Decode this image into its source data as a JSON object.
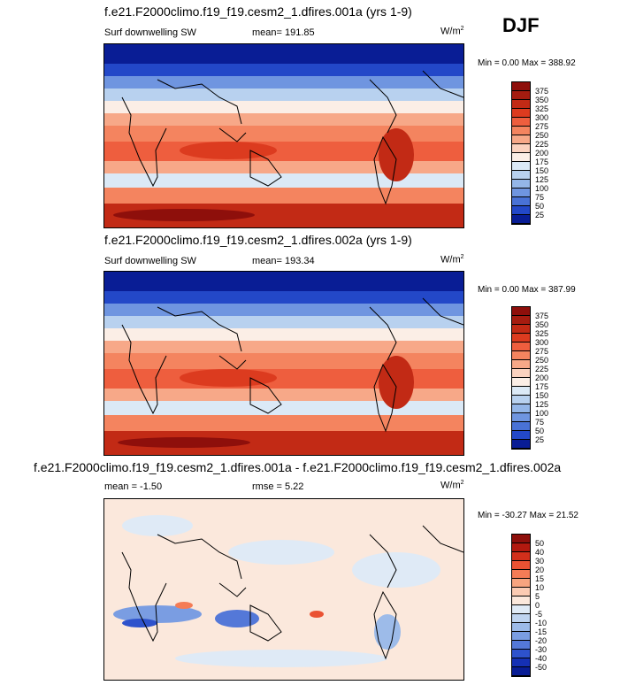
{
  "season": "DJF",
  "chart_data": [
    {
      "type": "heatmap",
      "title": "f.e21.F2000climo.f19_f19.cesm2_1.dfires.001a (yrs 1-9)",
      "variable": "Surf downwelling SW",
      "mean_label": "mean= 191.85",
      "units": "W/m",
      "units_exp": "2",
      "minmax": "Min =   0.00 Max = 388.92",
      "min": 0.0,
      "max": 388.92,
      "mean": 191.85,
      "levels": [
        "375",
        "350",
        "325",
        "300",
        "275",
        "250",
        "225",
        "200",
        "175",
        "150",
        "125",
        "100",
        "75",
        "50",
        "25"
      ],
      "colors": [
        "#8e0f0b",
        "#a51c10",
        "#c22a15",
        "#dc3b1f",
        "#ee5e3e",
        "#f4845f",
        "#f7a888",
        "#fbd2bf",
        "#fbeee6",
        "#dbe9f6",
        "#b8d1ef",
        "#94b6e8",
        "#6f95e0",
        "#4972d6",
        "#2348c8",
        "#091d95"
      ]
    },
    {
      "type": "heatmap",
      "title": "f.e21.F2000climo.f19_f19.cesm2_1.dfires.002a (yrs 1-9)",
      "variable": "Surf downwelling SW",
      "mean_label": "mean= 193.34",
      "units": "W/m",
      "units_exp": "2",
      "minmax": "Min =   0.00 Max = 387.99",
      "min": 0.0,
      "max": 387.99,
      "mean": 193.34,
      "levels": [
        "375",
        "350",
        "325",
        "300",
        "275",
        "250",
        "225",
        "200",
        "175",
        "150",
        "125",
        "100",
        "75",
        "50",
        "25"
      ],
      "colors": [
        "#8e0f0b",
        "#a51c10",
        "#c22a15",
        "#dc3b1f",
        "#ee5e3e",
        "#f4845f",
        "#f7a888",
        "#fbd2bf",
        "#fbeee6",
        "#dbe9f6",
        "#b8d1ef",
        "#94b6e8",
        "#6f95e0",
        "#4972d6",
        "#2348c8",
        "#091d95"
      ]
    },
    {
      "type": "heatmap",
      "title": "f.e21.F2000climo.f19_f19.cesm2_1.dfires.001a - f.e21.F2000climo.f19_f19.cesm2_1.dfires.002a",
      "variable": "",
      "mean_label": "mean =  -1.50",
      "rmse_label": "rmse =   5.22",
      "units": "W/m",
      "units_exp": "2",
      "minmax": "Min = -30.27 Max =  21.52",
      "min": -30.27,
      "max": 21.52,
      "mean": -1.5,
      "rmse": 5.22,
      "levels": [
        "50",
        "40",
        "30",
        "20",
        "15",
        "10",
        "5",
        "0",
        "-5",
        "-10",
        "-15",
        "-20",
        "-30",
        "-40",
        "-50"
      ],
      "colors": [
        "#8e0f0b",
        "#b2190f",
        "#d22f1b",
        "#ea5233",
        "#f47c56",
        "#f7a47f",
        "#fbcbb3",
        "#fbe8dc",
        "#dfeaf6",
        "#bfd4f0",
        "#9dbbe9",
        "#7a9de2",
        "#5478d8",
        "#2e52cc",
        "#1530b4",
        "#091d95"
      ]
    }
  ]
}
